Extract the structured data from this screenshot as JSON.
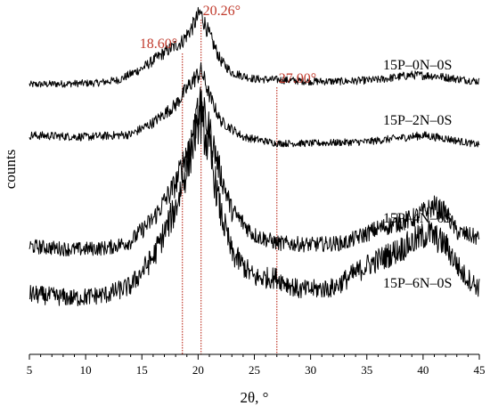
{
  "chart_data": {
    "type": "line",
    "xlabel": "2θ, °",
    "ylabel": "counts",
    "xlim": [
      5,
      45
    ],
    "xticks": [
      5,
      10,
      15,
      20,
      25,
      30,
      35,
      40,
      45
    ],
    "x_tick_labels": [
      "5",
      "10",
      "15",
      "20",
      "25",
      "30",
      "35",
      "40",
      "45"
    ],
    "grid": false,
    "line_color": "#000000",
    "annotation_color": "#c0392b",
    "peak_markers": [
      {
        "x": 18.6,
        "label": "18.60°"
      },
      {
        "x": 20.26,
        "label": "20.26°"
      },
      {
        "x": 27.0,
        "label": "27.00°"
      }
    ],
    "series": [
      {
        "name": "15P–0N–0S",
        "profile": [
          [
            5,
            0.1
          ],
          [
            8,
            0.11
          ],
          [
            11,
            0.12
          ],
          [
            13,
            0.16
          ],
          [
            15,
            0.3
          ],
          [
            17,
            0.5
          ],
          [
            18.6,
            0.64
          ],
          [
            19.5,
            0.82
          ],
          [
            20.2,
            1.0
          ],
          [
            21,
            0.72
          ],
          [
            22,
            0.4
          ],
          [
            23,
            0.25
          ],
          [
            25,
            0.17
          ],
          [
            27,
            0.16
          ],
          [
            30,
            0.14
          ],
          [
            33,
            0.14
          ],
          [
            36,
            0.16
          ],
          [
            39,
            0.22
          ],
          [
            41,
            0.21
          ],
          [
            43,
            0.17
          ],
          [
            45,
            0.14
          ]
        ]
      },
      {
        "name": "15P–2N–0S",
        "profile": [
          [
            5,
            0.2
          ],
          [
            10,
            0.18
          ],
          [
            14,
            0.21
          ],
          [
            16,
            0.36
          ],
          [
            18,
            0.58
          ],
          [
            19.5,
            0.88
          ],
          [
            20.3,
            1.0
          ],
          [
            21,
            0.7
          ],
          [
            22,
            0.38
          ],
          [
            24,
            0.18
          ],
          [
            27,
            0.1
          ],
          [
            30,
            0.1
          ],
          [
            35,
            0.12
          ],
          [
            40,
            0.2
          ],
          [
            42,
            0.16
          ],
          [
            45,
            0.08
          ]
        ]
      },
      {
        "name": "15P–4N–0S",
        "profile": [
          [
            5,
            0.13
          ],
          [
            9,
            0.11
          ],
          [
            12,
            0.12
          ],
          [
            14,
            0.16
          ],
          [
            16,
            0.3
          ],
          [
            18,
            0.52
          ],
          [
            19.3,
            0.78
          ],
          [
            20.2,
            1.0
          ],
          [
            21,
            0.86
          ],
          [
            22,
            0.58
          ],
          [
            23,
            0.35
          ],
          [
            25,
            0.2
          ],
          [
            27,
            0.15
          ],
          [
            30,
            0.14
          ],
          [
            33,
            0.15
          ],
          [
            36,
            0.24
          ],
          [
            39,
            0.3
          ],
          [
            41,
            0.38
          ],
          [
            42,
            0.34
          ],
          [
            43,
            0.22
          ],
          [
            45,
            0.18
          ]
        ]
      },
      {
        "name": "15P–6N–0S",
        "profile": [
          [
            5,
            0.12
          ],
          [
            9,
            0.1
          ],
          [
            12,
            0.12
          ],
          [
            14,
            0.16
          ],
          [
            16,
            0.3
          ],
          [
            18,
            0.54
          ],
          [
            19.3,
            0.8
          ],
          [
            20.1,
            1.0
          ],
          [
            21,
            0.82
          ],
          [
            22,
            0.52
          ],
          [
            23,
            0.32
          ],
          [
            25,
            0.2
          ],
          [
            27,
            0.2
          ],
          [
            29,
            0.14
          ],
          [
            32,
            0.15
          ],
          [
            35,
            0.26
          ],
          [
            38,
            0.34
          ],
          [
            40.5,
            0.42
          ],
          [
            42,
            0.36
          ],
          [
            43.5,
            0.22
          ],
          [
            45,
            0.15
          ]
        ]
      }
    ]
  }
}
